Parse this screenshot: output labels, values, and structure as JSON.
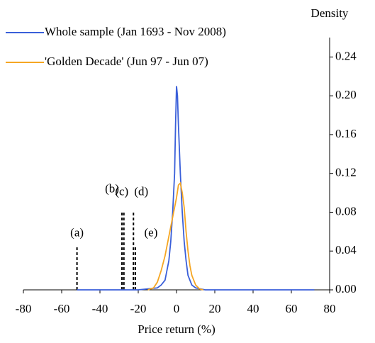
{
  "chart_data": {
    "type": "line",
    "xlabel": "Price return (%)",
    "ylabel": "Density",
    "xlim": [
      -80,
      80
    ],
    "xticks": [
      -80,
      -60,
      -40,
      -20,
      0,
      20,
      40,
      60,
      80
    ],
    "ylim": [
      0,
      0.26
    ],
    "yticks": [
      {
        "value": 0,
        "label": "0.00"
      },
      {
        "value": 0.04,
        "label": "0.04"
      },
      {
        "value": 0.08,
        "label": "0.08"
      },
      {
        "value": 0.12,
        "label": "0.12"
      },
      {
        "value": 0.16,
        "label": "0.16"
      },
      {
        "value": 0.2,
        "label": "0.20"
      },
      {
        "value": 0.24,
        "label": "0.24"
      }
    ],
    "legend": "top-left",
    "series": [
      {
        "name": "Whole sample (Jan 1693 - Nov 2008)",
        "color": "#3a5fd9",
        "x": [
          -52,
          -20,
          -10,
          -8,
          -6,
          -5,
          -4,
          -3,
          -2,
          -1,
          -0.5,
          0,
          0.5,
          1,
          2,
          3,
          4,
          5,
          6,
          8,
          10,
          15,
          72
        ],
        "values": [
          0,
          0,
          0.002,
          0.005,
          0.01,
          0.02,
          0.03,
          0.05,
          0.08,
          0.12,
          0.17,
          0.21,
          0.2,
          0.17,
          0.12,
          0.08,
          0.05,
          0.03,
          0.015,
          0.005,
          0.002,
          0,
          0
        ]
      },
      {
        "name": "'Golden Decade' (Jun 97 - Jun 07)",
        "color": "#f5a623",
        "x": [
          -15,
          -12,
          -10,
          -8,
          -6,
          -4,
          -2,
          0,
          1,
          2,
          3,
          4,
          5,
          6,
          7,
          8,
          10,
          12,
          14
        ],
        "values": [
          0,
          0.002,
          0.008,
          0.02,
          0.035,
          0.055,
          0.075,
          0.095,
          0.108,
          0.11,
          0.1,
          0.085,
          0.06,
          0.04,
          0.025,
          0.015,
          0.005,
          0.001,
          0
        ]
      }
    ],
    "markers": [
      {
        "label": "(a)",
        "x": -52,
        "height": 0.045
      },
      {
        "label": "(b)",
        "x": -28.5,
        "height": 0.08
      },
      {
        "label": "(c)",
        "x": -27.5,
        "height": 0.08
      },
      {
        "label": "(d)",
        "x": -22.5,
        "height": 0.08
      },
      {
        "label": "(e)",
        "x": -21.5,
        "height": 0.045
      }
    ]
  }
}
